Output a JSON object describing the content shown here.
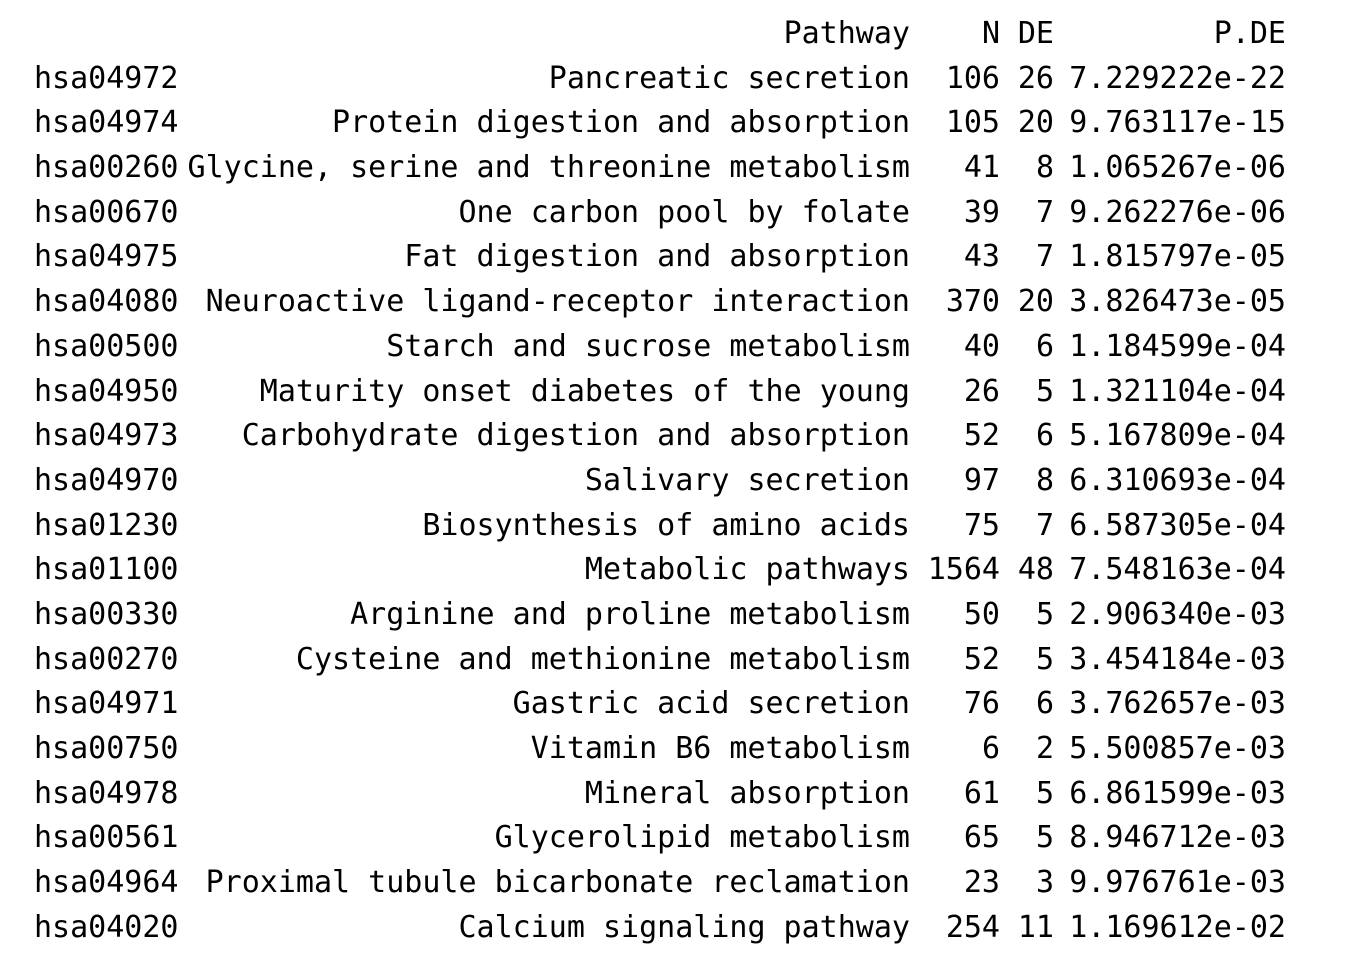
{
  "table": {
    "headers": {
      "id": "",
      "pathway": "Pathway",
      "n": "N",
      "de": "DE",
      "p_de": "P.DE"
    },
    "rows": [
      {
        "id": "hsa04972",
        "pathway": "Pancreatic secretion",
        "n": "106",
        "de": "26",
        "p_de": "7.229222e-22"
      },
      {
        "id": "hsa04974",
        "pathway": "Protein digestion and absorption",
        "n": "105",
        "de": "20",
        "p_de": "9.763117e-15"
      },
      {
        "id": "hsa00260",
        "pathway": "Glycine, serine and threonine metabolism",
        "n": "41",
        "de": "8",
        "p_de": "1.065267e-06"
      },
      {
        "id": "hsa00670",
        "pathway": "One carbon pool by folate",
        "n": "39",
        "de": "7",
        "p_de": "9.262276e-06"
      },
      {
        "id": "hsa04975",
        "pathway": "Fat digestion and absorption",
        "n": "43",
        "de": "7",
        "p_de": "1.815797e-05"
      },
      {
        "id": "hsa04080",
        "pathway": "Neuroactive ligand-receptor interaction",
        "n": "370",
        "de": "20",
        "p_de": "3.826473e-05"
      },
      {
        "id": "hsa00500",
        "pathway": "Starch and sucrose metabolism",
        "n": "40",
        "de": "6",
        "p_de": "1.184599e-04"
      },
      {
        "id": "hsa04950",
        "pathway": "Maturity onset diabetes of the young",
        "n": "26",
        "de": "5",
        "p_de": "1.321104e-04"
      },
      {
        "id": "hsa04973",
        "pathway": "Carbohydrate digestion and absorption",
        "n": "52",
        "de": "6",
        "p_de": "5.167809e-04"
      },
      {
        "id": "hsa04970",
        "pathway": "Salivary secretion",
        "n": "97",
        "de": "8",
        "p_de": "6.310693e-04"
      },
      {
        "id": "hsa01230",
        "pathway": "Biosynthesis of amino acids",
        "n": "75",
        "de": "7",
        "p_de": "6.587305e-04"
      },
      {
        "id": "hsa01100",
        "pathway": "Metabolic pathways",
        "n": "1564",
        "de": "48",
        "p_de": "7.548163e-04"
      },
      {
        "id": "hsa00330",
        "pathway": "Arginine and proline metabolism",
        "n": "50",
        "de": "5",
        "p_de": "2.906340e-03"
      },
      {
        "id": "hsa00270",
        "pathway": "Cysteine and methionine metabolism",
        "n": "52",
        "de": "5",
        "p_de": "3.454184e-03"
      },
      {
        "id": "hsa04971",
        "pathway": "Gastric acid secretion",
        "n": "76",
        "de": "6",
        "p_de": "3.762657e-03"
      },
      {
        "id": "hsa00750",
        "pathway": "Vitamin B6 metabolism",
        "n": "6",
        "de": "2",
        "p_de": "5.500857e-03"
      },
      {
        "id": "hsa04978",
        "pathway": "Mineral absorption",
        "n": "61",
        "de": "5",
        "p_de": "6.861599e-03"
      },
      {
        "id": "hsa00561",
        "pathway": "Glycerolipid metabolism",
        "n": "65",
        "de": "5",
        "p_de": "8.946712e-03"
      },
      {
        "id": "hsa04964",
        "pathway": "Proximal tubule bicarbonate reclamation",
        "n": "23",
        "de": "3",
        "p_de": "9.976761e-03"
      },
      {
        "id": "hsa04020",
        "pathway": "Calcium signaling pathway",
        "n": "254",
        "de": "11",
        "p_de": "1.169612e-02"
      }
    ]
  }
}
